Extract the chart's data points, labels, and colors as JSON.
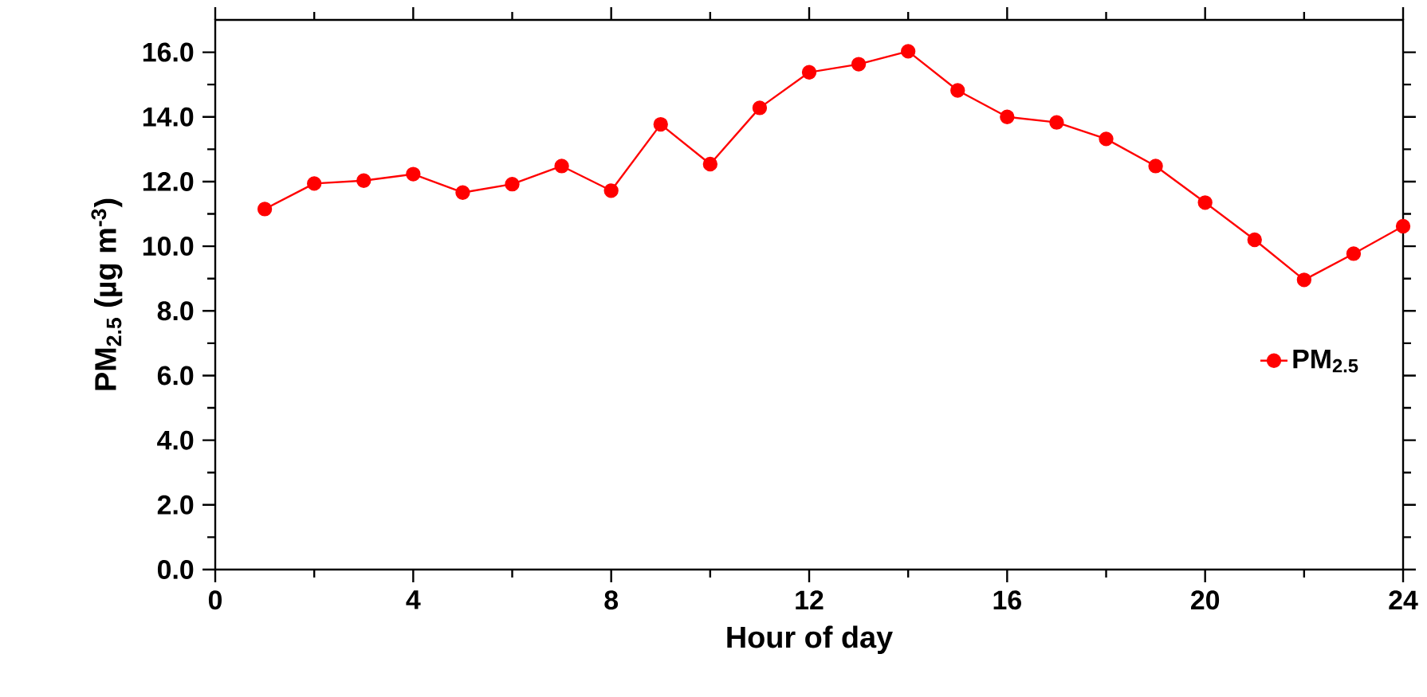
{
  "chart_data": {
    "type": "line",
    "xlabel": "Hour of day",
    "ylabel": "PM$_{2.5}$ (µg m$^{-3}$)",
    "x": [
      1,
      2,
      3,
      4,
      5,
      6,
      7,
      8,
      9,
      10,
      11,
      12,
      13,
      14,
      15,
      16,
      17,
      18,
      19,
      20,
      21,
      22,
      23,
      24
    ],
    "series": [
      {
        "name": "PM$_{2.5}$",
        "color": "#ff0000",
        "values": [
          11.15,
          11.94,
          12.03,
          12.23,
          11.66,
          11.92,
          12.48,
          11.72,
          13.77,
          12.54,
          14.28,
          15.38,
          15.63,
          16.03,
          14.82,
          14.0,
          13.83,
          13.32,
          12.48,
          11.35,
          10.2,
          8.96,
          9.77,
          10.62
        ]
      }
    ],
    "xlim": [
      0,
      24
    ],
    "xticks": [
      0,
      4,
      8,
      12,
      16,
      20,
      24
    ],
    "ylim": [
      0,
      17
    ],
    "yticks": [
      {
        "value": 0,
        "label": "0.0"
      },
      {
        "value": 2,
        "label": "2.0"
      },
      {
        "value": 4,
        "label": "4.0"
      },
      {
        "value": 6,
        "label": "6.0"
      },
      {
        "value": 8,
        "label": "8.0"
      },
      {
        "value": 10,
        "label": "10.0"
      },
      {
        "value": 12,
        "label": "12.0"
      },
      {
        "value": 14,
        "label": "14.0"
      },
      {
        "value": 16,
        "label": "16.0"
      }
    ],
    "marker": "circle",
    "line_style": "solid",
    "legend": "right",
    "grid": false
  }
}
